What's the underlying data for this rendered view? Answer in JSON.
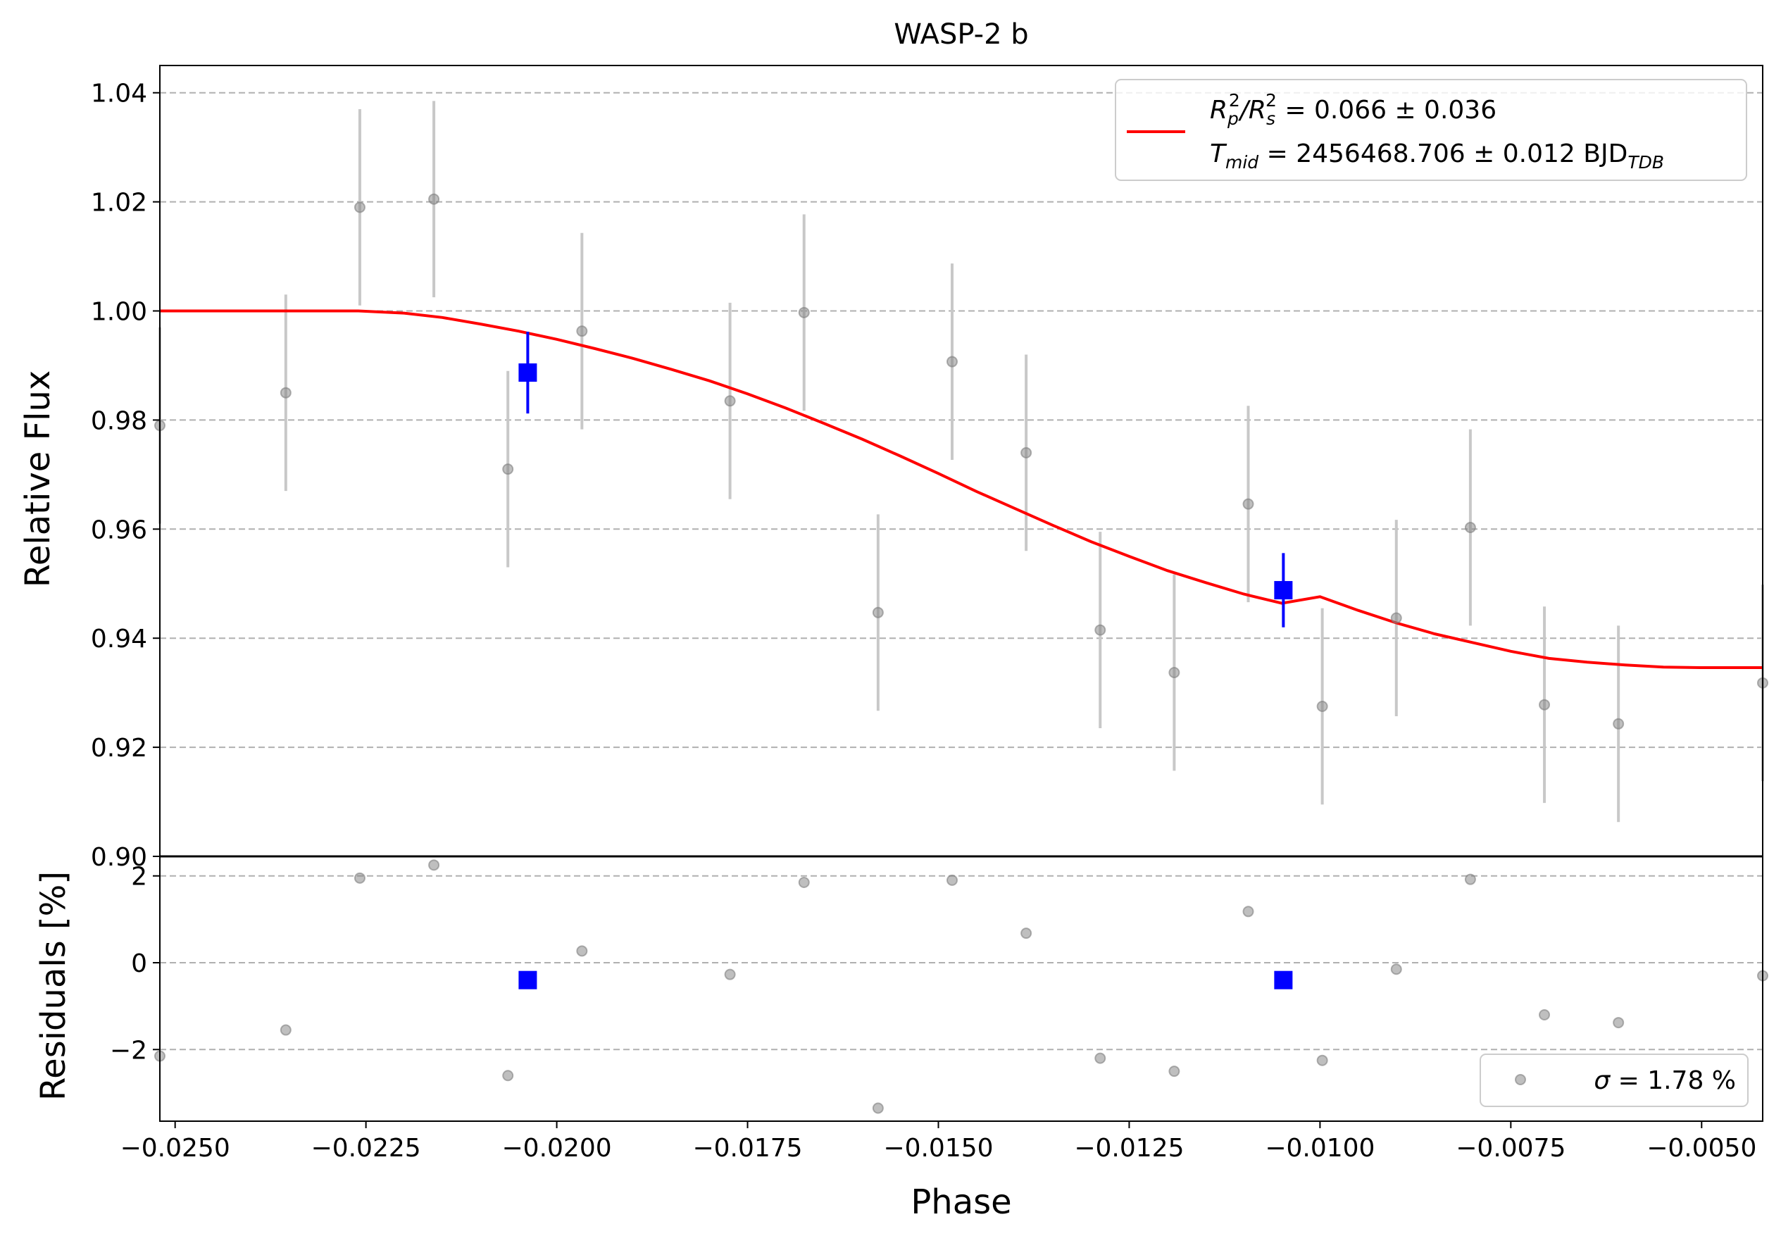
{
  "chart_data": [
    {
      "panel": "light-curve",
      "type": "scatter",
      "title": "WASP-2 b",
      "xlabel": "",
      "ylabel": "Relative Flux",
      "xlim": [
        -0.0252,
        -0.0042
      ],
      "ylim": [
        0.9,
        1.045
      ],
      "grid": "horizontal-dashed",
      "legend_position": "top-right",
      "x_tick_values": [
        -0.025,
        -0.0225,
        -0.02,
        -0.0175,
        -0.015,
        -0.0125,
        -0.01,
        -0.0075,
        -0.005
      ],
      "y_ticks": [
        0.9,
        0.92,
        0.94,
        0.96,
        0.98,
        1.0,
        1.02,
        1.04
      ],
      "y_tick_labels": [
        "0.90",
        "0.92",
        "0.94",
        "0.96",
        "0.98",
        "1.00",
        "1.02",
        "1.04"
      ],
      "series": [
        {
          "role": "data",
          "color": "#808080",
          "x": [
            -0.0252,
            -0.02355,
            -0.02258,
            -0.02161,
            -0.02064,
            -0.01967,
            -0.01773,
            -0.01676,
            -0.01579,
            -0.01482,
            -0.01385,
            -0.01288,
            -0.01191,
            -0.01094,
            -0.00997,
            -0.009,
            -0.00803,
            -0.00706,
            -0.00609,
            -0.0042
          ],
          "y": [
            0.979,
            0.985,
            1.019,
            1.0205,
            0.971,
            0.9963,
            0.9835,
            0.9997,
            0.9447,
            0.9907,
            0.974,
            0.9415,
            0.9337,
            0.9646,
            0.9275,
            0.9437,
            0.9603,
            0.9278,
            0.9243,
            0.9318
          ],
          "yerr": [
            0.018,
            0.018,
            0.018,
            0.018,
            0.018,
            0.018,
            0.018,
            0.018,
            0.018,
            0.018,
            0.018,
            0.018,
            0.018,
            0.018,
            0.018,
            0.018,
            0.018,
            0.018,
            0.018,
            0.018
          ]
        },
        {
          "role": "binned",
          "color": "#0000ff",
          "x": [
            -0.02038,
            -0.01048
          ],
          "y": [
            0.9887,
            0.9488
          ],
          "yerr": [
            0.0075,
            0.0068
          ]
        },
        {
          "role": "model",
          "name": "",
          "color": "#ff0000",
          "x": [
            -0.0252,
            -0.0226,
            -0.022,
            -0.0215,
            -0.021,
            -0.0205,
            -0.02,
            -0.0195,
            -0.019,
            -0.0185,
            -0.018,
            -0.0175,
            -0.017,
            -0.0165,
            -0.016,
            -0.0155,
            -0.015,
            -0.0145,
            -0.014,
            -0.0135,
            -0.013,
            -0.0125,
            -0.012,
            -0.0115,
            -0.011,
            -0.0105,
            -0.01,
            -0.0095,
            -0.009,
            -0.0085,
            -0.008,
            -0.0075,
            -0.007,
            -0.0065,
            -0.006,
            -0.0055,
            -0.005,
            -0.0045,
            -0.0042
          ],
          "y": [
            1.0,
            1.0,
            0.9996,
            0.9988,
            0.9976,
            0.9963,
            0.9948,
            0.9931,
            0.9913,
            0.9893,
            0.9872,
            0.9848,
            0.9822,
            0.9794,
            0.9765,
            0.9734,
            0.9702,
            0.9669,
            0.9638,
            0.9607,
            0.9577,
            0.955,
            0.9524,
            0.9502,
            0.9481,
            0.9464,
            0.9476,
            0.9451,
            0.9428,
            0.9408,
            0.9392,
            0.9376,
            0.9363,
            0.9356,
            0.9351,
            0.9347,
            0.9346,
            0.9346,
            0.9346
          ]
        }
      ],
      "legend_lines": [
        {
          "main": "R",
          "sub1": "p",
          "sup1": "2",
          "mid": "/R",
          "sub2": "s",
          "sup2": "2",
          "rest": " = 0.066 ± 0.036"
        },
        {
          "main": "T",
          "sub1": "mid",
          "rest": " = 2456468.706 ± 0.012 BJD",
          "sub2": "TDB"
        }
      ]
    },
    {
      "panel": "residuals",
      "type": "scatter",
      "xlabel": "Phase",
      "ylabel": "Residuals [%]",
      "xlim": [
        -0.0252,
        -0.0042
      ],
      "ylim": [
        -3.65,
        2.45
      ],
      "grid": "horizontal-dashed",
      "legend_position": "bottom-right",
      "x_tick_values": [
        -0.025,
        -0.0225,
        -0.02,
        -0.0175,
        -0.015,
        -0.0125,
        -0.01,
        -0.0075,
        -0.005
      ],
      "x_tick_labels": [
        "−0.0250",
        "−0.0225",
        "−0.0200",
        "−0.0175",
        "−0.0150",
        "−0.0125",
        "−0.0100",
        "−0.0075",
        "−0.0050"
      ],
      "y_ticks": [
        -2,
        0,
        2
      ],
      "y_tick_labels": [
        "−2",
        "0",
        "2"
      ],
      "series": [
        {
          "role": "data",
          "color": "#808080",
          "x": [
            -0.0252,
            -0.02355,
            -0.02258,
            -0.02161,
            -0.02064,
            -0.01967,
            -0.01773,
            -0.01676,
            -0.01579,
            -0.01482,
            -0.01385,
            -0.01288,
            -0.01191,
            -0.01094,
            -0.00997,
            -0.009,
            -0.00803,
            -0.00706,
            -0.00609,
            -0.0042
          ],
          "y": [
            -2.15,
            -1.55,
            1.95,
            2.25,
            -2.6,
            0.27,
            -0.27,
            1.85,
            -3.35,
            1.9,
            0.68,
            -2.2,
            -2.5,
            1.18,
            -2.25,
            -0.15,
            1.92,
            -1.2,
            -1.38,
            -0.3
          ]
        },
        {
          "role": "binned",
          "color": "#0000ff",
          "x": [
            -0.02038,
            -0.01048
          ],
          "y": [
            -0.4,
            -0.4
          ]
        }
      ],
      "legend": {
        "symbol": "σ",
        "text": " = 1.78 %"
      }
    }
  ]
}
